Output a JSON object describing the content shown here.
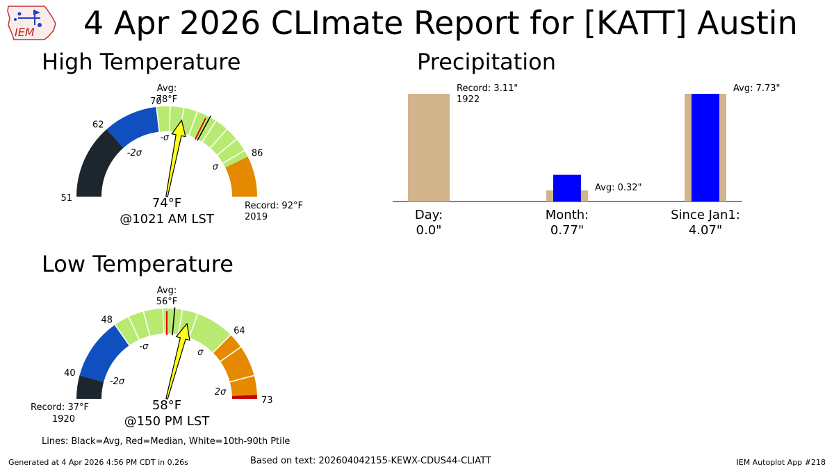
{
  "header": {
    "title": "4 Apr 2026 CLImate Report for [KATT] Austin",
    "logo_text": "IEM"
  },
  "sections": {
    "high_title": "High Temperature",
    "low_title": "Low Temperature",
    "precip_title": "Precipitation"
  },
  "notes": {
    "lines_legend": "Lines: Black=Avg, Red=Median, White=10th-90th Ptile"
  },
  "footer": {
    "generated": "Generated at 4 Apr 2026 4:56 PM CDT in 0.26s",
    "based_on": "Based on text: 202604042155-KEWX-CDUS44-CLIATT",
    "app": "IEM Autoplot App #218"
  },
  "colors": {
    "extreme_low": "#1c262e",
    "low": "#0f4fc0",
    "normal": "#b8ea72",
    "high": "#e58a00",
    "extreme_high": "#c80000",
    "needle": "#ffff1a",
    "avg_line": "#000000",
    "median_line": "#e00000",
    "precip_avg": "#d2b48c",
    "precip_obs": "#0000ff"
  },
  "chart_data": [
    {
      "type": "gauge",
      "id": "high",
      "min": 51,
      "max": 92,
      "tick_labels": [
        {
          "value": 51,
          "label": "51"
        },
        {
          "value": 62,
          "label": "62"
        },
        {
          "value": 70,
          "label": "70"
        },
        {
          "value": 86,
          "label": "86"
        }
      ],
      "bands": [
        {
          "from": 51,
          "to": 62,
          "color": "extreme_low"
        },
        {
          "from": 62,
          "to": 70,
          "color": "low"
        },
        {
          "from": 70,
          "to": 86,
          "color": "normal"
        },
        {
          "from": 86,
          "to": 92,
          "color": "high"
        }
      ],
      "sigma_labels": [
        {
          "value": 62,
          "label": "-2σ"
        },
        {
          "value": 71,
          "label": "-σ"
        },
        {
          "value": 85,
          "label": "σ"
        }
      ],
      "ptile_lines": [
        70,
        72,
        74,
        76,
        79,
        81,
        83,
        85
      ],
      "avg": 78,
      "median": 77.5,
      "avg_label": "Avg:",
      "avg_value_label": "78°F",
      "observed": 74,
      "observed_label": "74°F",
      "time_label": "@1021 AM LST",
      "record_label": "Record: 92°F",
      "record_year": "2019",
      "record_side": "right"
    },
    {
      "type": "gauge",
      "id": "low",
      "min": 37,
      "max": 73,
      "tick_labels": [
        {
          "value": 40,
          "label": "40"
        },
        {
          "value": 48,
          "label": "48"
        },
        {
          "value": 64,
          "label": "64"
        },
        {
          "value": 73,
          "label": "73"
        }
      ],
      "bands": [
        {
          "from": 37,
          "to": 40,
          "color": "extreme_low"
        },
        {
          "from": 40,
          "to": 48,
          "color": "low"
        },
        {
          "from": 48,
          "to": 64,
          "color": "normal"
        },
        {
          "from": 64,
          "to": 72.5,
          "color": "high"
        },
        {
          "from": 72.5,
          "to": 73,
          "color": "extreme_high"
        }
      ],
      "sigma_labels": [
        {
          "value": 40.5,
          "label": "-2σ"
        },
        {
          "value": 49.5,
          "label": "-σ"
        },
        {
          "value": 62.5,
          "label": "σ"
        },
        {
          "value": 71.5,
          "label": "2σ"
        }
      ],
      "ptile_lines": [
        48,
        50,
        52,
        54.5,
        57,
        59,
        64,
        66,
        70
      ],
      "avg": 56,
      "median": 55,
      "avg_label": "Avg:",
      "avg_value_label": "56°F",
      "observed": 58,
      "observed_label": "58°F",
      "time_label": "@150 PM LST",
      "record_label": "Record: 37°F",
      "record_year": "1920",
      "record_side": "left"
    },
    {
      "type": "bar",
      "id": "precipitation",
      "ylim": [
        0,
        3.11
      ],
      "groups": [
        {
          "label": "Day:",
          "value_label": "0.0\"",
          "observed": 0.0,
          "reference": 3.11,
          "annotation": "Record: 3.11\"",
          "annotation2": "1922"
        },
        {
          "label": "Month:",
          "value_label": "0.77\"",
          "observed": 0.77,
          "reference": 0.32,
          "annotation": "Avg: 0.32\"",
          "annotation2": ""
        },
        {
          "label": "Since Jan1:",
          "value_label": "4.07\"",
          "observed": 4.07,
          "reference": 7.73,
          "annotation": "Avg: 7.73\"",
          "annotation2": ""
        }
      ]
    }
  ]
}
